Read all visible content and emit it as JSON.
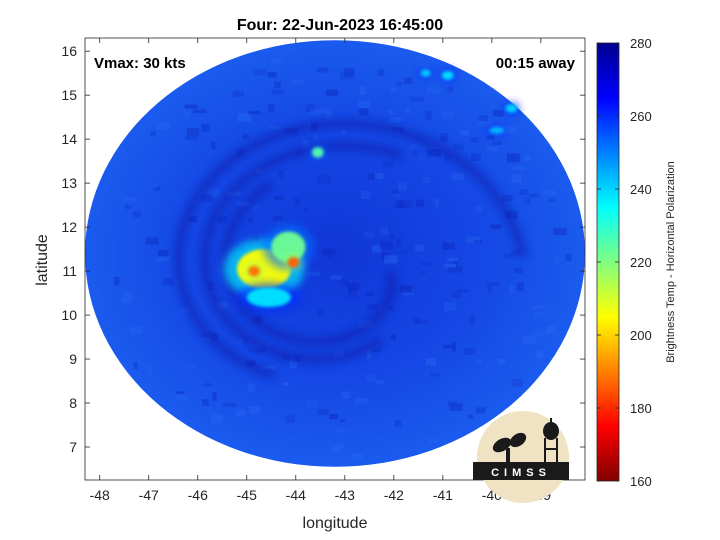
{
  "figure": {
    "title": "Four: 22-Jun-2023 16:45:00",
    "vmax_label": "Vmax: 30 kts",
    "time_label": "00:15 away",
    "logo_text": "CIMSS"
  },
  "chart_data": {
    "type": "heatmap",
    "title": "Four: 22-Jun-2023 16:45:00",
    "xlabel": "longitude",
    "ylabel": "latitude",
    "xlim": [
      -48.3,
      -38.1
    ],
    "ylim": [
      6.25,
      16.3
    ],
    "xticks": [
      -48,
      -47,
      -46,
      -45,
      -44,
      -43,
      -42,
      -41,
      -40,
      -39
    ],
    "yticks": [
      7,
      8,
      9,
      10,
      11,
      12,
      13,
      14,
      15,
      16
    ],
    "colorbar": {
      "label": "Brightness Temp - Horizontal Polarization",
      "range": [
        160,
        280
      ],
      "ticks": [
        160,
        180,
        200,
        220,
        240,
        260,
        280
      ],
      "colors": [
        "#800000",
        "#ff0000",
        "#ff8000",
        "#ffff00",
        "#80ff80",
        "#00ffff",
        "#0080ff",
        "#0000ff",
        "#000090"
      ]
    },
    "swath": {
      "center_lon": -43.2,
      "center_lat": 11.4,
      "radius_lon": 5.1,
      "radius_lat": 4.85,
      "background_value": 262
    },
    "features": [
      {
        "lon": -44.65,
        "lat": 11.05,
        "value": 205,
        "spread_lon": 0.55,
        "spread_lat": 0.45
      },
      {
        "lon": -44.15,
        "lat": 11.55,
        "value": 222,
        "spread_lon": 0.35,
        "spread_lat": 0.35
      },
      {
        "lon": -44.85,
        "lat": 11.0,
        "value": 188,
        "spread_lon": 0.12,
        "spread_lat": 0.12
      },
      {
        "lon": -44.05,
        "lat": 11.2,
        "value": 186,
        "spread_lon": 0.12,
        "spread_lat": 0.12
      },
      {
        "lon": -44.55,
        "lat": 10.4,
        "value": 238,
        "spread_lon": 0.45,
        "spread_lat": 0.22
      },
      {
        "lon": -43.55,
        "lat": 13.7,
        "value": 225,
        "spread_lon": 0.12,
        "spread_lat": 0.12
      },
      {
        "lon": -40.9,
        "lat": 15.45,
        "value": 238,
        "spread_lon": 0.12,
        "spread_lat": 0.1
      },
      {
        "lon": -41.35,
        "lat": 15.5,
        "value": 240,
        "spread_lon": 0.1,
        "spread_lat": 0.08
      },
      {
        "lon": -39.6,
        "lat": 14.7,
        "value": 240,
        "spread_lon": 0.12,
        "spread_lat": 0.1
      },
      {
        "lon": -39.9,
        "lat": 14.2,
        "value": 243,
        "spread_lon": 0.15,
        "spread_lat": 0.08
      }
    ]
  }
}
